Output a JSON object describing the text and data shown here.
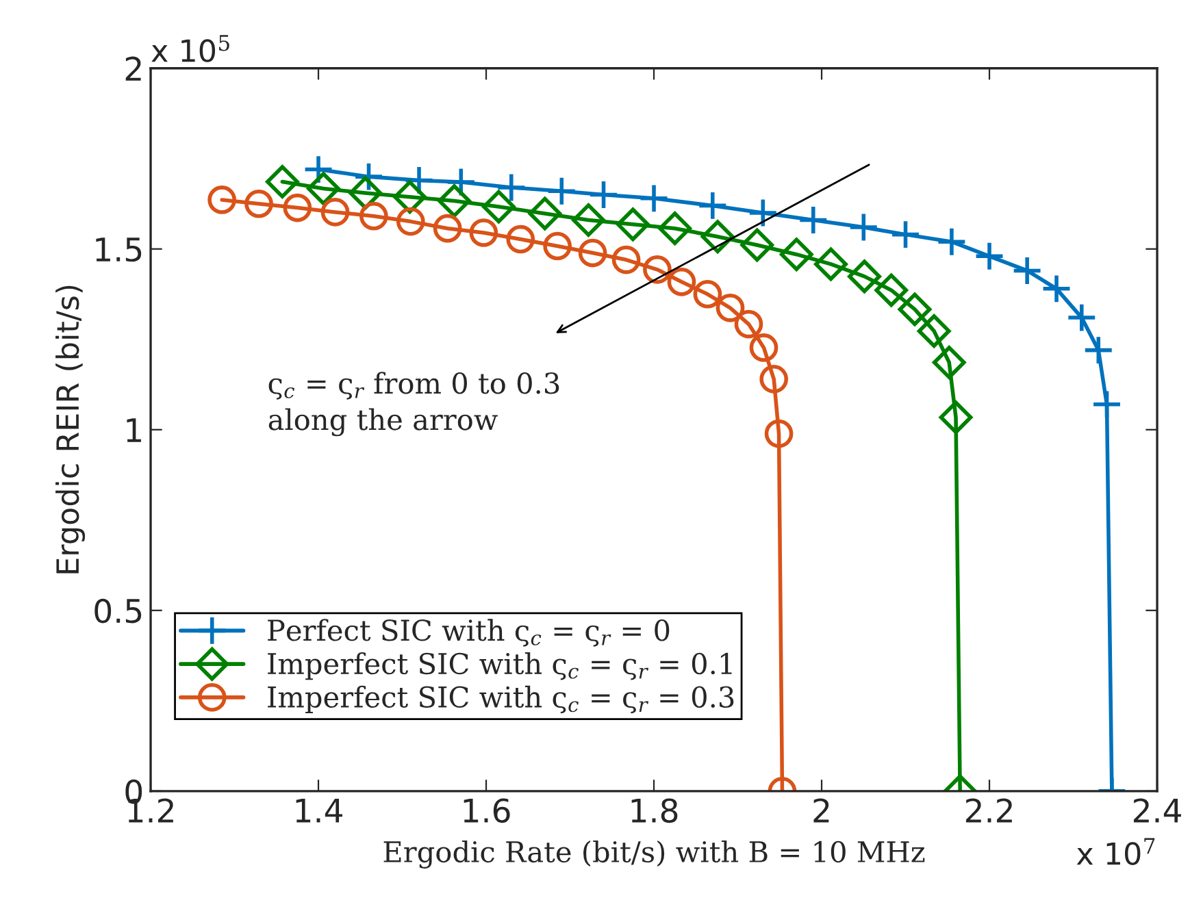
{
  "chart_data": {
    "type": "line",
    "xlabel": "Ergodic Rate (bit/s) with B = 10 MHz",
    "ylabel": "Ergodic REIR (bit/s)",
    "xlim": [
      1.2,
      2.4
    ],
    "xticks": [
      1.2,
      1.4,
      1.6,
      1.8,
      {
        "value": 2.0,
        "label": "2"
      },
      2.2,
      2.4
    ],
    "ylim": [
      0,
      2
    ],
    "yticks": [
      0,
      0.5,
      1,
      1.5,
      2
    ],
    "grid": false,
    "legend": "bottom left",
    "line_style": "solid",
    "annotations": [
      "ς$_{c}$ = ς$_{r}$ from 0 to 0.3\nalong the arrow",
      "x 10$^{5}$",
      "x 10$^{7}$"
    ],
    "series": [
      {
        "name": "Perfect SIC with ς$_{c}$ = ς$_{r}$ = 0",
        "color": "#0072bd",
        "marker": "cross",
        "x": [
          1.4,
          1.46,
          1.52,
          1.57,
          1.63,
          1.69,
          1.74,
          1.8,
          1.87,
          1.93,
          1.99,
          2.05,
          2.1,
          2.155,
          2.2,
          2.245,
          2.28,
          2.31,
          2.33,
          2.34,
          2.346
        ],
        "values": [
          1.72,
          1.7,
          1.69,
          1.685,
          1.67,
          1.66,
          1.65,
          1.64,
          1.62,
          1.6,
          1.58,
          1.56,
          1.54,
          1.52,
          1.48,
          1.44,
          1.39,
          1.31,
          1.22,
          1.07,
          0
        ]
      },
      {
        "name": "Imperfect SIC with ς$_{c}$ = ς$_{r}$ = 0.1",
        "color": "#008000",
        "marker": "diamond",
        "x": [
          1.357,
          1.406,
          1.456,
          1.509,
          1.562,
          1.615,
          1.67,
          1.722,
          1.775,
          1.825,
          1.876,
          1.923,
          1.97,
          2.011,
          2.051,
          2.083,
          2.111,
          2.134,
          2.152,
          2.16,
          2.165
        ],
        "values": [
          1.686,
          1.667,
          1.655,
          1.644,
          1.633,
          1.617,
          1.598,
          1.58,
          1.568,
          1.557,
          1.534,
          1.511,
          1.485,
          1.458,
          1.424,
          1.386,
          1.333,
          1.273,
          1.186,
          1.034,
          0
        ]
      },
      {
        "name": "Imperfect SIC with ς$_{c}$ = ς$_{r}$ = 0.3",
        "color": "#d95319",
        "marker": "circle",
        "x": [
          1.285,
          1.329,
          1.375,
          1.42,
          1.466,
          1.51,
          1.554,
          1.597,
          1.641,
          1.685,
          1.727,
          1.767,
          1.804,
          1.833,
          1.864,
          1.891,
          1.913,
          1.931,
          1.943,
          1.949,
          1.953
        ],
        "values": [
          1.636,
          1.625,
          1.614,
          1.602,
          1.591,
          1.576,
          1.557,
          1.545,
          1.527,
          1.508,
          1.489,
          1.47,
          1.443,
          1.409,
          1.375,
          1.337,
          1.292,
          1.227,
          1.14,
          0.989,
          0
        ]
      }
    ]
  }
}
